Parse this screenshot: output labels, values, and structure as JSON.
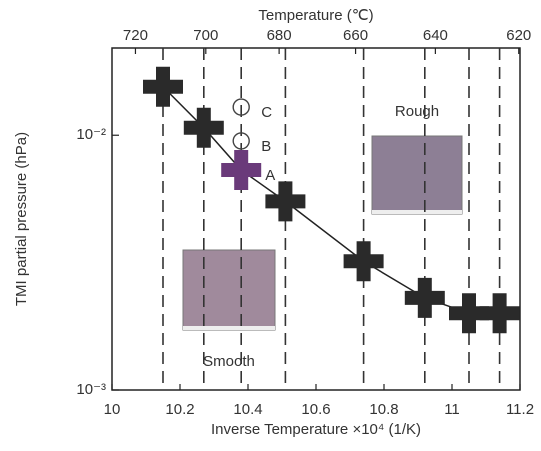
{
  "chart_data": {
    "type": "scatter",
    "x_label": "Inverse Temperature ×10⁴ (1/K)",
    "x2_label": "Temperature (℃)",
    "y_label": "TMI partial pressure (hPa)",
    "xlim": [
      10,
      11.2
    ],
    "xticks": [
      10,
      10.2,
      10.4,
      10.6,
      10.8,
      11,
      11.2
    ],
    "x2ticks": [
      720,
      700,
      680,
      660,
      640,
      620
    ],
    "ylim": [
      0.001,
      0.022
    ],
    "yticks": [
      {
        "value": 0.001,
        "label": "10⁻³"
      },
      {
        "value": 0.01,
        "label": "10⁻²"
      }
    ],
    "log_scale": "y",
    "series": [
      {
        "x": [
          10.15,
          10.27,
          10.38,
          10.51,
          10.74,
          10.92,
          11.05,
          11.14
        ],
        "values": [
          0.0155,
          0.0107,
          0.0073,
          0.0055,
          0.0032,
          0.0023,
          0.002,
          0.002
        ],
        "colors": [
          "#2a2a2a",
          "#2a2a2a",
          "#6a3a7a",
          "#2a2a2a",
          "#2a2a2a",
          "#2a2a2a",
          "#2a2a2a",
          "#2a2a2a"
        ],
        "point_labels": [
          null,
          null,
          "A",
          null,
          null,
          null,
          null,
          null
        ]
      },
      {
        "x": [
          10.38,
          10.38
        ],
        "values": [
          0.0129,
          0.0095
        ],
        "color": "#444",
        "point_labels": [
          "C",
          "B"
        ]
      }
    ],
    "insets": [
      {
        "label": "Rough"
      },
      {
        "label": "Smooth"
      }
    ]
  }
}
